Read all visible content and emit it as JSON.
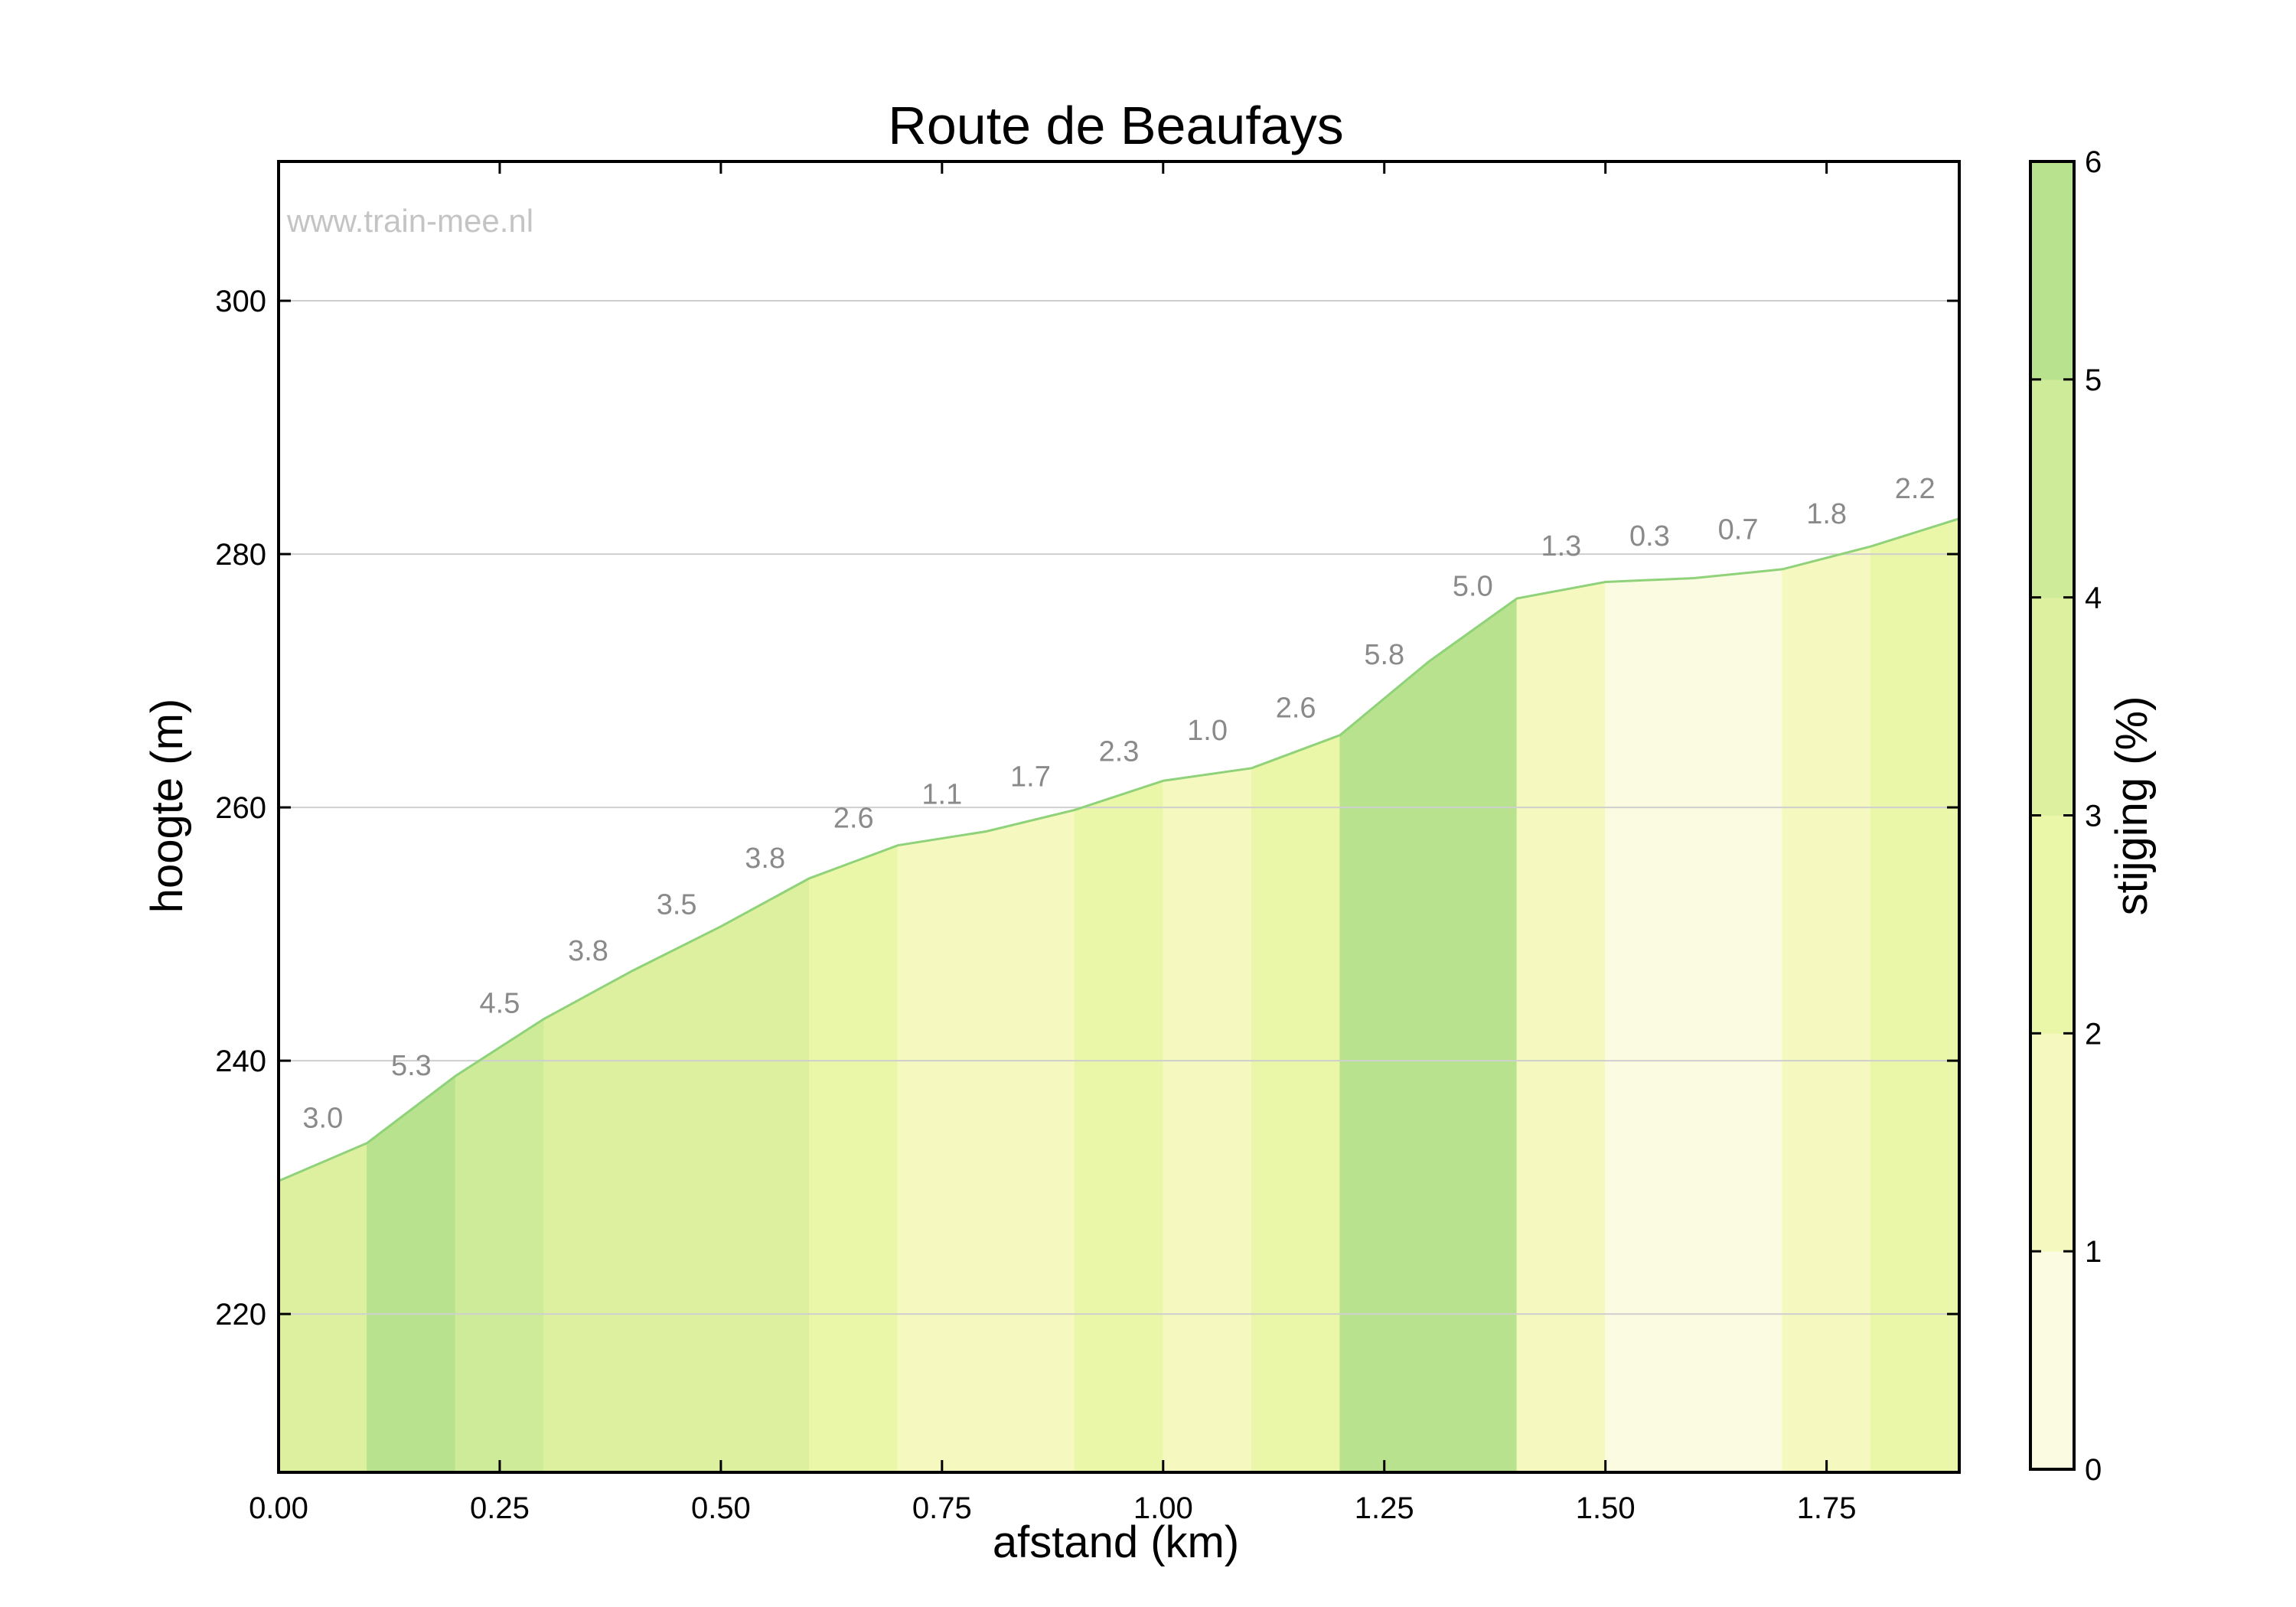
{
  "chart_data": {
    "type": "area",
    "title": "Route de Beaufays",
    "watermark": "www.train-mee.nl",
    "xlabel": "afstand (km)",
    "ylabel": "hoogte (m)",
    "colorbar_label": "stijging (%)",
    "xlim": [
      0,
      1.9
    ],
    "ylim": [
      207.5,
      311
    ],
    "x_ticks": [
      0,
      0.25,
      0.5,
      0.75,
      1.0,
      1.25,
      1.5,
      1.75
    ],
    "x_tick_labels": [
      "0.00",
      "0.25",
      "0.50",
      "0.75",
      "1.00",
      "1.25",
      "1.50",
      "1.75"
    ],
    "y_ticks": [
      220,
      240,
      260,
      280,
      300
    ],
    "y_tick_labels": [
      "220",
      "240",
      "260",
      "280",
      "300"
    ],
    "colorbar_ticks": [
      0,
      1,
      2,
      3,
      4,
      5,
      6
    ],
    "colorbar_tick_labels": [
      "0",
      "1",
      "2",
      "3",
      "4",
      "5",
      "6"
    ],
    "grid": true,
    "profile": {
      "x": [
        0,
        0.1,
        0.2,
        0.3,
        0.4,
        0.5,
        0.6,
        0.7,
        0.8,
        0.9,
        1.0,
        1.1,
        1.2,
        1.3,
        1.4,
        1.5,
        1.6,
        1.7,
        1.8,
        1.9
      ],
      "y": [
        230.5,
        233.5,
        238.8,
        243.3,
        247.1,
        250.6,
        254.4,
        257.0,
        258.1,
        259.8,
        262.1,
        263.1,
        265.7,
        271.5,
        276.5,
        277.8,
        278.1,
        278.8,
        280.6,
        282.8
      ]
    },
    "segments": [
      {
        "start": 0.0,
        "end": 0.1,
        "grade": 3.0,
        "label": "3.0"
      },
      {
        "start": 0.1,
        "end": 0.2,
        "grade": 5.3,
        "label": "5.3"
      },
      {
        "start": 0.2,
        "end": 0.3,
        "grade": 4.5,
        "label": "4.5"
      },
      {
        "start": 0.3,
        "end": 0.4,
        "grade": 3.8,
        "label": "3.8"
      },
      {
        "start": 0.4,
        "end": 0.5,
        "grade": 3.5,
        "label": "3.5"
      },
      {
        "start": 0.5,
        "end": 0.6,
        "grade": 3.8,
        "label": "3.8"
      },
      {
        "start": 0.6,
        "end": 0.7,
        "grade": 2.6,
        "label": "2.6"
      },
      {
        "start": 0.7,
        "end": 0.8,
        "grade": 1.1,
        "label": "1.1"
      },
      {
        "start": 0.8,
        "end": 0.9,
        "grade": 1.7,
        "label": "1.7"
      },
      {
        "start": 0.9,
        "end": 1.0,
        "grade": 2.3,
        "label": "2.3"
      },
      {
        "start": 1.0,
        "end": 1.1,
        "grade": 1.0,
        "label": "1.0"
      },
      {
        "start": 1.1,
        "end": 1.2,
        "grade": 2.6,
        "label": "2.6"
      },
      {
        "start": 1.2,
        "end": 1.3,
        "grade": 5.8,
        "label": "5.8"
      },
      {
        "start": 1.3,
        "end": 1.4,
        "grade": 5.0,
        "label": "5.0"
      },
      {
        "start": 1.4,
        "end": 1.5,
        "grade": 1.3,
        "label": "1.3"
      },
      {
        "start": 1.5,
        "end": 1.6,
        "grade": 0.3,
        "label": "0.3"
      },
      {
        "start": 1.6,
        "end": 1.7,
        "grade": 0.7,
        "label": "0.7"
      },
      {
        "start": 1.7,
        "end": 1.8,
        "grade": 1.8,
        "label": "1.8"
      },
      {
        "start": 1.8,
        "end": 1.9,
        "grade": 2.2,
        "label": "2.2"
      }
    ],
    "colorbar_colors": [
      "#fbfbe2",
      "#f5f9c0",
      "#eaf6a8",
      "#dcf0a0",
      "#cdeb98",
      "#b8e28e"
    ],
    "profile_line_color": "#8fd27a"
  }
}
